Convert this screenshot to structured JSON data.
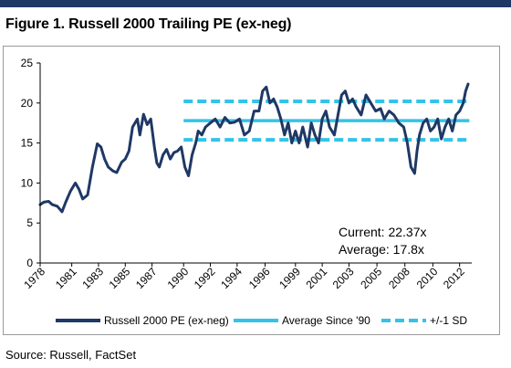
{
  "page": {
    "title": "Figure 1. Russell 2000 Trailing PE (ex-neg)",
    "source": "Source: Russell, FactSet"
  },
  "chart_data": {
    "type": "line",
    "ylim": [
      0,
      25
    ],
    "yticks": [
      0,
      5,
      10,
      15,
      20,
      25
    ],
    "xlim": [
      1978,
      2013.5
    ],
    "xtick_labels": [
      "1978",
      "1981",
      "1983",
      "1985",
      "1987",
      "1990",
      "1992",
      "1994",
      "1996",
      "1999",
      "2001",
      "2003",
      "2005",
      "2008",
      "2010",
      "2012"
    ],
    "xtick_years": [
      1978,
      1980.6,
      1982.8,
      1985,
      1987.2,
      1989.8,
      1992,
      1994.2,
      1996.5,
      1999,
      2001.2,
      2003.4,
      2005.7,
      2008,
      2010.3,
      2012.5
    ],
    "series": [
      {
        "name": "Russell 2000 PE (ex-neg)",
        "color": "#1f3864",
        "x": [
          1978.0,
          1978.3,
          1978.7,
          1979.0,
          1979.4,
          1979.8,
          1980.1,
          1980.5,
          1980.9,
          1981.2,
          1981.5,
          1981.9,
          1982.3,
          1982.7,
          1983.0,
          1983.3,
          1983.6,
          1984.0,
          1984.3,
          1984.7,
          1985.0,
          1985.3,
          1985.6,
          1986.0,
          1986.2,
          1986.5,
          1986.8,
          1987.1,
          1987.4,
          1987.6,
          1987.8,
          1988.1,
          1988.4,
          1988.7,
          1989.0,
          1989.3,
          1989.6,
          1989.9,
          1990.2,
          1990.5,
          1990.8,
          1991.0,
          1991.3,
          1991.6,
          1992.0,
          1992.4,
          1992.8,
          1993.2,
          1993.6,
          1994.0,
          1994.4,
          1994.8,
          1995.2,
          1995.6,
          1996.0,
          1996.3,
          1996.6,
          1996.9,
          1997.2,
          1997.5,
          1997.8,
          1998.1,
          1998.4,
          1998.7,
          1999.0,
          1999.3,
          1999.6,
          2000.0,
          2000.3,
          2000.6,
          2000.9,
          2001.2,
          2001.5,
          2001.8,
          2002.2,
          2002.5,
          2002.8,
          2003.1,
          2003.4,
          2003.7,
          2004.0,
          2004.4,
          2004.8,
          2005.2,
          2005.6,
          2006.0,
          2006.3,
          2006.7,
          2007.1,
          2007.5,
          2007.9,
          2008.2,
          2008.5,
          2008.8,
          2009.0,
          2009.2,
          2009.5,
          2009.8,
          2010.1,
          2010.4,
          2010.7,
          2011.0,
          2011.3,
          2011.6,
          2011.9,
          2012.2,
          2012.5,
          2012.8,
          2013.0,
          2013.2
        ],
        "values": [
          7.3,
          7.6,
          7.7,
          7.3,
          7.1,
          6.4,
          7.6,
          9.0,
          10.0,
          9.2,
          8.0,
          8.5,
          12.0,
          14.9,
          14.5,
          13.0,
          12.0,
          11.5,
          11.3,
          12.6,
          13.0,
          14.0,
          17.0,
          18.0,
          16.0,
          18.6,
          17.3,
          18.0,
          14.5,
          12.5,
          12.0,
          13.5,
          14.2,
          13.0,
          13.8,
          14.0,
          14.5,
          12.0,
          10.9,
          13.5,
          15.0,
          16.5,
          16.0,
          17.0,
          17.5,
          18.0,
          17.0,
          18.2,
          17.5,
          17.6,
          18.0,
          16.0,
          16.5,
          19.0,
          19.0,
          21.5,
          22.0,
          20.0,
          20.5,
          19.5,
          18.0,
          16.0,
          17.5,
          15.0,
          16.5,
          15.0,
          17.0,
          14.5,
          17.5,
          16.0,
          15.0,
          18.0,
          19.0,
          17.0,
          16.0,
          18.5,
          21.0,
          21.5,
          20.0,
          20.5,
          19.5,
          18.5,
          21.0,
          20.0,
          19.0,
          19.3,
          18.0,
          19.0,
          18.5,
          17.5,
          17.0,
          15.0,
          12.0,
          11.2,
          14.0,
          16.0,
          17.5,
          18.0,
          16.5,
          17.0,
          18.0,
          15.5,
          17.0,
          18.0,
          16.5,
          18.5,
          19.0,
          20.0,
          21.5,
          22.37
        ]
      },
      {
        "name": "Average Since '90",
        "color": "#33c3e8",
        "x": [
          1989.8,
          2013.3
        ],
        "values": [
          17.8,
          17.8
        ]
      },
      {
        "name": "+/-1 SD",
        "color": "#33c3e8",
        "dashed": true,
        "x": [
          1989.8,
          2013.3
        ],
        "upper": 20.2,
        "lower": 15.4
      }
    ],
    "legend": [
      "Russell 2000 PE (ex-neg)",
      "Average Since '90",
      "+/-1 SD"
    ],
    "annotations": [
      "Current: 22.37x",
      "Average: 17.8x"
    ]
  }
}
